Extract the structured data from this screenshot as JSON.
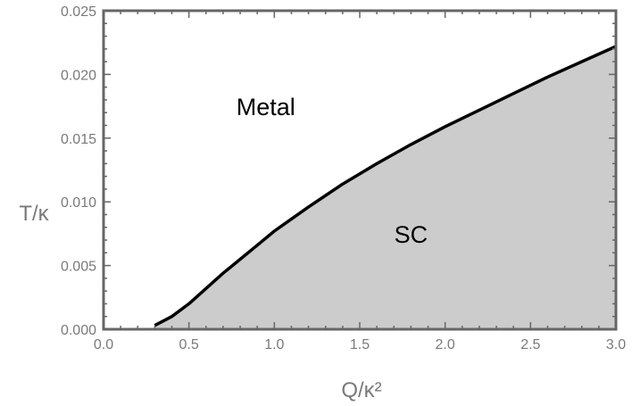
{
  "chart_data": {
    "type": "area",
    "xlabel": "Q/κ²",
    "ylabel": "T/κ",
    "xlim": [
      0,
      3.0
    ],
    "ylim": [
      0,
      0.025
    ],
    "x_ticks": [
      "0.0",
      "0.5",
      "1.0",
      "1.5",
      "2.0",
      "2.5",
      "3.0"
    ],
    "y_ticks": [
      "0.000",
      "0.005",
      "0.010",
      "0.015",
      "0.020",
      "0.025"
    ],
    "grid": false,
    "series": [
      {
        "x": [
          0.3,
          0.4,
          0.5,
          0.6,
          0.7,
          0.8,
          0.9,
          1.0,
          1.2,
          1.4,
          1.6,
          1.8,
          2.0,
          2.2,
          2.4,
          2.6,
          2.8,
          3.0
        ],
        "y": [
          0.0003,
          0.001,
          0.002,
          0.0032,
          0.0044,
          0.0055,
          0.0066,
          0.0077,
          0.0096,
          0.0114,
          0.013,
          0.0145,
          0.0159,
          0.0172,
          0.0185,
          0.0198,
          0.021,
          0.0222
        ]
      }
    ],
    "regions": [
      {
        "label": "Metal",
        "x": 0.95,
        "y": 0.0175
      },
      {
        "label": "SC",
        "x": 1.8,
        "y": 0.0075
      }
    ],
    "colors": {
      "fill": "#cccccc",
      "line": "#000000",
      "frame": "#666666",
      "tick_text": "#7a7a7a"
    }
  }
}
